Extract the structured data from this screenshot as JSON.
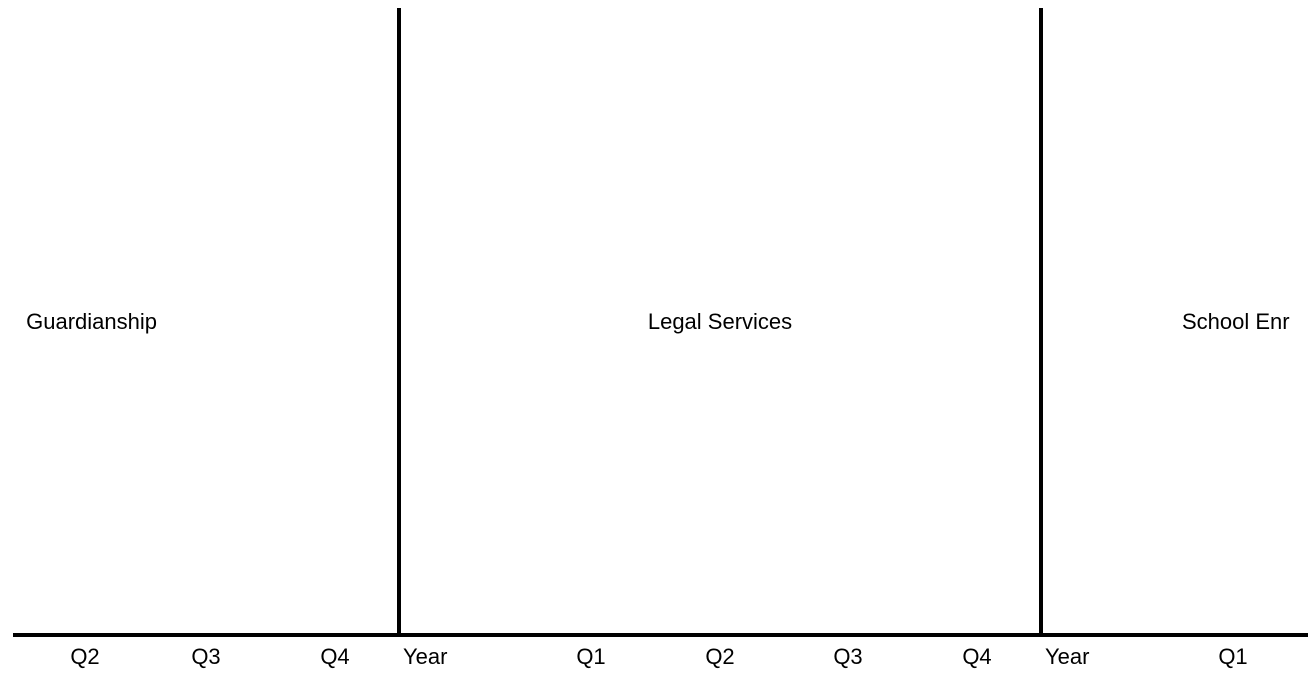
{
  "sections": [
    {
      "label": "Guardianship"
    },
    {
      "label": "Legal Services"
    },
    {
      "label": "School Enr"
    }
  ],
  "columns": [
    {
      "label": "Q2"
    },
    {
      "label": "Q3"
    },
    {
      "label": "Q4"
    },
    {
      "label": "Year"
    },
    {
      "label": "Q1"
    },
    {
      "label": "Q2"
    },
    {
      "label": "Q3"
    },
    {
      "label": "Q4"
    },
    {
      "label": "Year"
    },
    {
      "label": "Q1"
    }
  ]
}
